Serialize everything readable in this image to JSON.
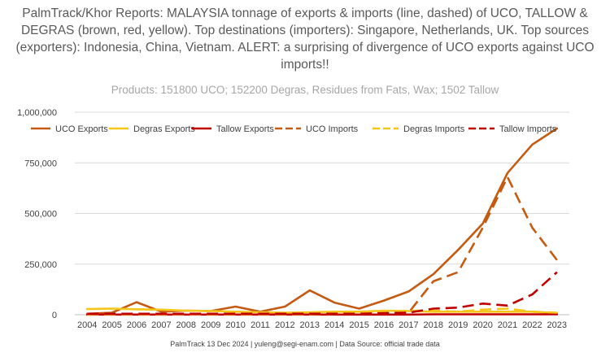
{
  "title": "PalmTrack/Khor Reports: MALAYSIA tonnage of exports & imports (line, dashed) of UCO, TALLOW & DEGRAS (brown, red, yellow). Top destinations (importers): Singapore, Netherlands, UK. Top sources (exporters): Indonesia, China, Vietnam. ALERT: a surprising of divergence of UCO exports against UCO imports!!",
  "subtitle": "Products: 151800 UCO; 152200 Degras, Residues from Fats, Wax; 1502 Tallow",
  "footer": "PalmTrack 13 Dec 2024  | yuleng@segi-enam.com | Data Source: official trade data",
  "colors": {
    "brown": "#c55a11",
    "yellow": "#f5c518",
    "red": "#c00000",
    "text": "#404040",
    "grid": "#d9d9d9"
  },
  "chart_data": {
    "type": "line",
    "categories": [
      "2004",
      "2005",
      "2006",
      "2007",
      "2008",
      "2009",
      "2010",
      "2011",
      "2012",
      "2013",
      "2014",
      "2015",
      "2016",
      "2017",
      "2018",
      "2019",
      "2020",
      "2021",
      "2022",
      "2023"
    ],
    "ylim": [
      0,
      1000000
    ],
    "yticks": [
      0,
      250000,
      500000,
      750000,
      1000000
    ],
    "ytick_labels": [
      "0",
      "250,000",
      "500,000",
      "750,000",
      "1,000,000"
    ],
    "legend_position": "top",
    "grid": true,
    "series": [
      {
        "name": "UCO Exports",
        "color": "#c55a11",
        "dashed": false,
        "values": [
          5000,
          10000,
          62000,
          15000,
          20000,
          18000,
          40000,
          15000,
          40000,
          120000,
          60000,
          30000,
          70000,
          115000,
          200000,
          320000,
          450000,
          700000,
          840000,
          920000
        ]
      },
      {
        "name": "Degras Exports",
        "color": "#f5c518",
        "dashed": false,
        "values": [
          28000,
          30000,
          27000,
          25000,
          20000,
          18000,
          15000,
          12000,
          10000,
          12000,
          15000,
          15000,
          20000,
          18000,
          15000,
          15000,
          15000,
          15000,
          15000,
          8000
        ]
      },
      {
        "name": "Tallow Exports",
        "color": "#c00000",
        "dashed": false,
        "values": [
          1000,
          1000,
          1000,
          1000,
          1000,
          1000,
          1000,
          1000,
          1000,
          1000,
          1000,
          1000,
          1000,
          1000,
          2000,
          2000,
          2000,
          2000,
          2000,
          2000
        ]
      },
      {
        "name": "UCO Imports",
        "color": "#c55a11",
        "dashed": true,
        "values": [
          2000,
          2000,
          2000,
          3000,
          3000,
          3000,
          3000,
          3000,
          5000,
          5000,
          5000,
          5000,
          8000,
          10000,
          165000,
          210000,
          430000,
          680000,
          430000,
          270000
        ]
      },
      {
        "name": "Degras Imports",
        "color": "#f5c518",
        "dashed": true,
        "values": [
          3000,
          3000,
          3000,
          3000,
          3000,
          3000,
          3000,
          3000,
          3000,
          3000,
          5000,
          8000,
          15000,
          20000,
          20000,
          15000,
          25000,
          30000,
          15000,
          10000
        ]
      },
      {
        "name": "Tallow Imports",
        "color": "#c00000",
        "dashed": true,
        "values": [
          5000,
          5000,
          5000,
          5000,
          5000,
          5000,
          5000,
          5000,
          5000,
          5000,
          5000,
          5000,
          8000,
          10000,
          30000,
          35000,
          55000,
          45000,
          100000,
          210000
        ]
      }
    ]
  }
}
